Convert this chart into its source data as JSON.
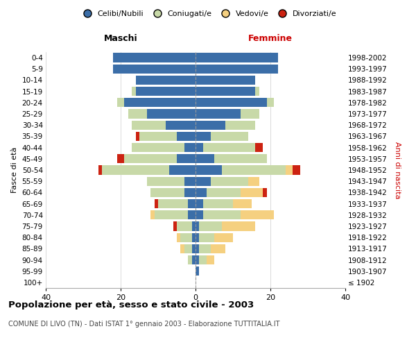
{
  "age_groups": [
    "100+",
    "95-99",
    "90-94",
    "85-89",
    "80-84",
    "75-79",
    "70-74",
    "65-69",
    "60-64",
    "55-59",
    "50-54",
    "45-49",
    "40-44",
    "35-39",
    "30-34",
    "25-29",
    "20-24",
    "15-19",
    "10-14",
    "5-9",
    "0-4"
  ],
  "birth_years": [
    "≤ 1902",
    "1903-1907",
    "1908-1912",
    "1913-1917",
    "1918-1922",
    "1923-1927",
    "1928-1932",
    "1933-1937",
    "1938-1942",
    "1943-1947",
    "1948-1952",
    "1953-1957",
    "1958-1962",
    "1963-1967",
    "1968-1972",
    "1973-1977",
    "1978-1982",
    "1983-1987",
    "1988-1992",
    "1993-1997",
    "1998-2002"
  ],
  "colors": {
    "celibi": "#3b6ea8",
    "coniugati": "#c8d9a8",
    "vedovi": "#f5d080",
    "divorziati": "#cc2211"
  },
  "males": {
    "celibi": [
      0,
      0,
      1,
      1,
      1,
      1,
      2,
      2,
      3,
      3,
      7,
      5,
      3,
      5,
      8,
      13,
      19,
      16,
      16,
      22,
      22
    ],
    "coniugati": [
      0,
      0,
      1,
      2,
      3,
      4,
      9,
      8,
      9,
      10,
      18,
      14,
      14,
      10,
      9,
      5,
      2,
      1,
      0,
      0,
      0
    ],
    "vedovi": [
      0,
      0,
      0,
      1,
      1,
      0,
      1,
      0,
      0,
      0,
      0,
      0,
      0,
      0,
      0,
      0,
      0,
      0,
      0,
      0,
      0
    ],
    "divorziati": [
      0,
      0,
      0,
      0,
      0,
      1,
      0,
      1,
      0,
      0,
      1,
      2,
      0,
      1,
      0,
      0,
      0,
      0,
      0,
      0,
      0
    ]
  },
  "females": {
    "celibi": [
      0,
      1,
      1,
      1,
      1,
      1,
      2,
      2,
      3,
      4,
      7,
      5,
      2,
      4,
      8,
      12,
      19,
      16,
      16,
      22,
      22
    ],
    "coniugati": [
      0,
      0,
      2,
      3,
      4,
      6,
      10,
      8,
      9,
      10,
      17,
      14,
      14,
      10,
      8,
      5,
      2,
      1,
      0,
      0,
      0
    ],
    "vedovi": [
      0,
      0,
      2,
      4,
      5,
      9,
      9,
      5,
      6,
      3,
      2,
      0,
      0,
      0,
      0,
      0,
      0,
      0,
      0,
      0,
      0
    ],
    "divorziati": [
      0,
      0,
      0,
      0,
      0,
      0,
      0,
      0,
      1,
      0,
      2,
      0,
      2,
      0,
      0,
      0,
      0,
      0,
      0,
      0,
      0
    ]
  },
  "xlim": 40,
  "title": "Popolazione per età, sesso e stato civile - 2003",
  "subtitle": "COMUNE DI LIVO (TN) - Dati ISTAT 1° gennaio 2003 - Elaborazione TUTTITALIA.IT",
  "ylabel_left": "Fasce di età",
  "ylabel_right": "Anni di nascita",
  "maschi_label": "Maschi",
  "femmine_label": "Femmine",
  "legend_labels": [
    "Celibi/Nubili",
    "Coniugati/e",
    "Vedovi/e",
    "Divorziati/e"
  ],
  "bg_color": "#ffffff",
  "maschi_color": "#000000",
  "femmine_color": "#cc0000"
}
